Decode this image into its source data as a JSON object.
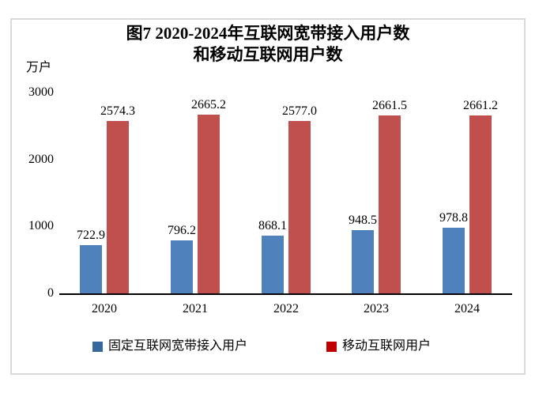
{
  "title": {
    "line1": "图7 2020-2024年互联网宽带接入用户数",
    "line2": "和移动互联网用户数"
  },
  "y_axis": {
    "unit": "万户"
  },
  "chart_data": {
    "type": "bar",
    "title": "图7 2020-2024年互联网宽带接入用户数和移动互联网用户数",
    "xlabel": "",
    "ylabel": "万户",
    "ylim": [
      0,
      3000
    ],
    "yticks": [
      0,
      1000,
      2000,
      3000
    ],
    "ytick_labels": [
      "0",
      "1000",
      "2000",
      "3000"
    ],
    "grid": false,
    "data_labels": true,
    "legend_position": "bottom",
    "categories": [
      "2020",
      "2021",
      "2022",
      "2023",
      "2024"
    ],
    "series": [
      {
        "name": "固定互联网宽带接入用户",
        "slug": "fixed-broadband",
        "values": [
          722.9,
          796.2,
          868.1,
          948.5,
          978.8
        ],
        "labels": [
          "722.9",
          "796.2",
          "868.1",
          "948.5",
          "978.8"
        ],
        "bar_color": "#4F81BD",
        "legend_color": "#35689D"
      },
      {
        "name": "移动互联网用户",
        "slug": "mobile-internet",
        "values": [
          2574.3,
          2665.2,
          2577.0,
          2661.5,
          2661.2
        ],
        "labels": [
          "2574.3",
          "2665.2",
          "2577.0",
          "2661.5",
          "2661.2"
        ],
        "bar_color": "#C0504D",
        "legend_color": "#C00000"
      }
    ]
  },
  "colors": {
    "frame_border": "#D9D9D9",
    "axis_line": "#000000",
    "text": "#000000",
    "background": "#FFFFFF"
  }
}
